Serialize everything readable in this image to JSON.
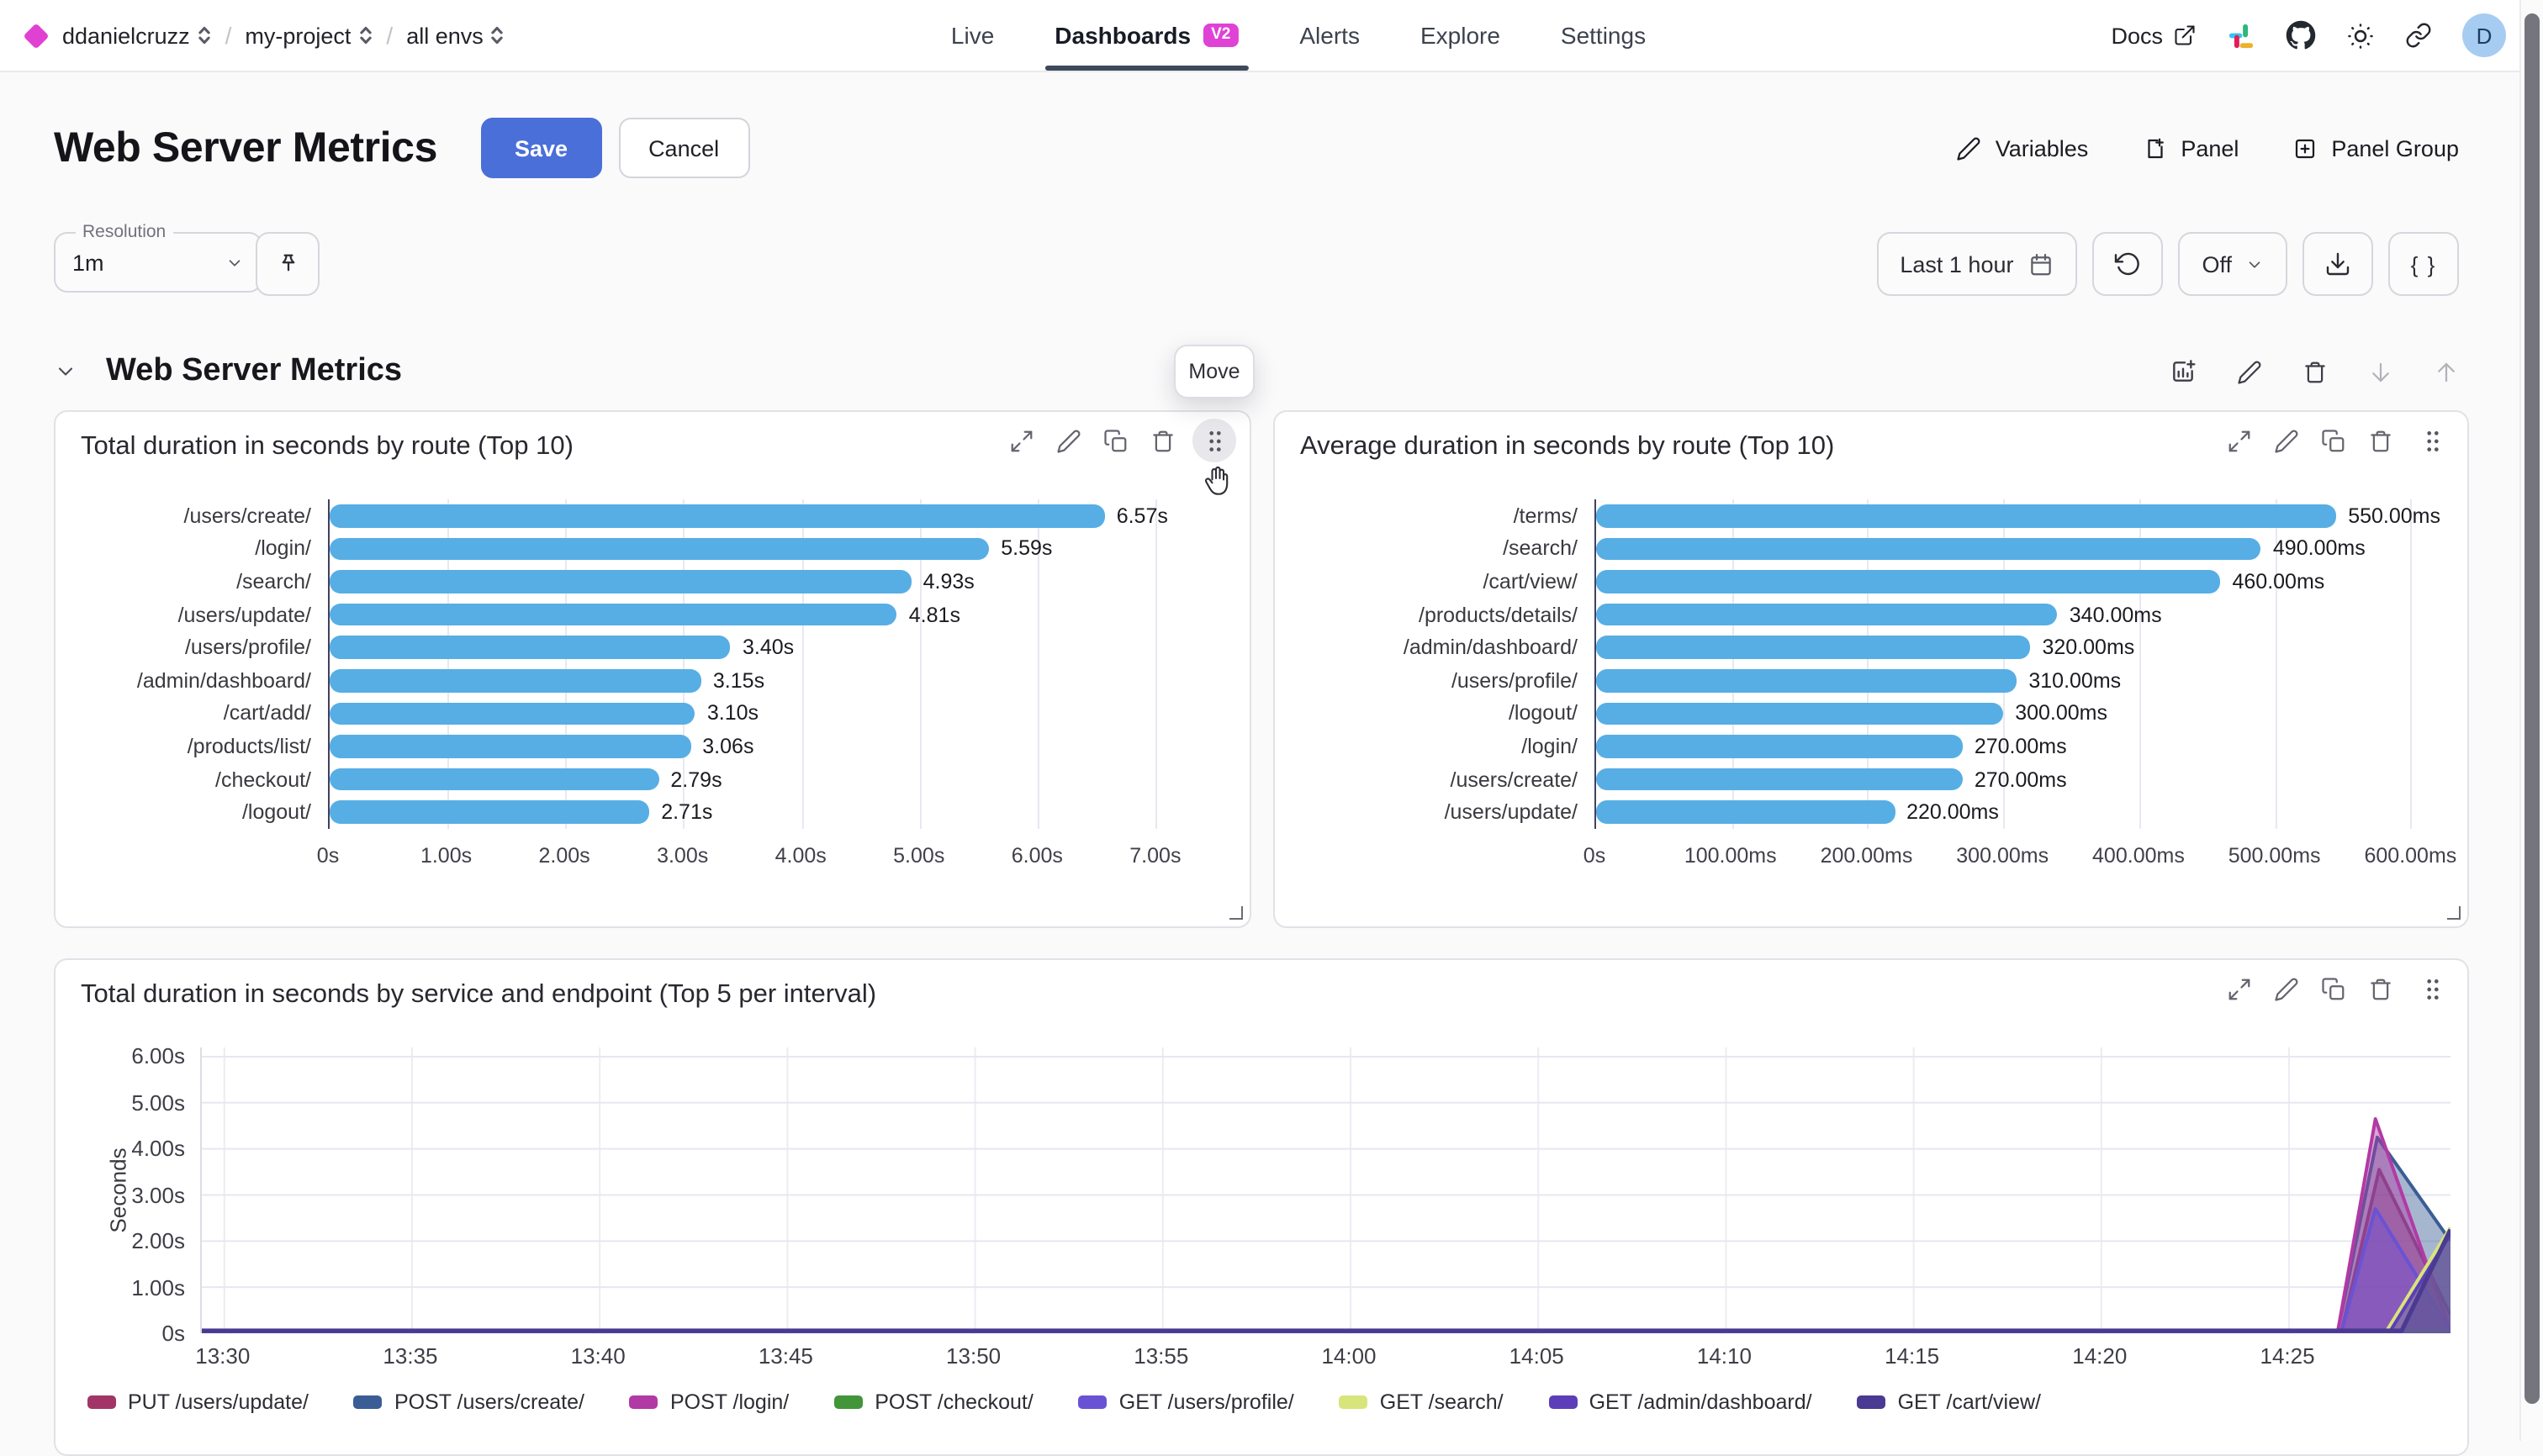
{
  "nav": {
    "org": "ddanielcruzz",
    "project": "my-project",
    "env": "all envs",
    "tabs": [
      {
        "label": "Live",
        "active": false
      },
      {
        "label": "Dashboards",
        "active": true,
        "badge": "V2"
      },
      {
        "label": "Alerts",
        "active": false
      },
      {
        "label": "Explore",
        "active": false
      },
      {
        "label": "Settings",
        "active": false
      }
    ],
    "docs_label": "Docs",
    "avatar_initial": "D"
  },
  "header": {
    "title": "Web Server Metrics",
    "save_label": "Save",
    "cancel_label": "Cancel",
    "variables_label": "Variables",
    "panel_label": "Panel",
    "panel_group_label": "Panel Group"
  },
  "controls": {
    "resolution_label": "Resolution",
    "resolution_value": "1m",
    "time_range_label": "Last 1 hour",
    "auto_refresh_value": "Off",
    "braces_label": "{ }"
  },
  "section": {
    "title": "Web Server Metrics",
    "move_tooltip": "Move"
  },
  "colors": {
    "accent_save": "#4a6fd9",
    "bar_blue": "#57aee4",
    "badge_magenta": "#e042d6",
    "tab_underline": "#3d4a5c"
  },
  "chart_data": [
    {
      "type": "bar",
      "orientation": "horizontal",
      "title": "Total duration in seconds by route (Top 10)",
      "categories": [
        "/users/create/",
        "/login/",
        "/search/",
        "/users/update/",
        "/users/profile/",
        "/admin/dashboard/",
        "/cart/add/",
        "/products/list/",
        "/checkout/",
        "/logout/"
      ],
      "values": [
        6.57,
        5.59,
        4.93,
        4.81,
        3.4,
        3.15,
        3.1,
        3.06,
        2.79,
        2.71
      ],
      "value_labels": [
        "6.57s",
        "5.59s",
        "4.93s",
        "4.81s",
        "3.40s",
        "3.15s",
        "3.10s",
        "3.06s",
        "2.79s",
        "2.71s"
      ],
      "x_ticks": [
        {
          "value": 0,
          "label": "0s"
        },
        {
          "value": 1,
          "label": "1.00s"
        },
        {
          "value": 2,
          "label": "2.00s"
        },
        {
          "value": 3,
          "label": "3.00s"
        },
        {
          "value": 4,
          "label": "4.00s"
        },
        {
          "value": 5,
          "label": "5.00s"
        },
        {
          "value": 6,
          "label": "6.00s"
        },
        {
          "value": 7,
          "label": "7.00s"
        }
      ],
      "axis_max": 7.57,
      "bar_color": "#57aee4"
    },
    {
      "type": "bar",
      "orientation": "horizontal",
      "title": "Average duration in seconds by route (Top 10)",
      "categories": [
        "/terms/",
        "/search/",
        "/cart/view/",
        "/products/details/",
        "/admin/dashboard/",
        "/users/profile/",
        "/logout/",
        "/login/",
        "/users/create/",
        "/users/update/"
      ],
      "values": [
        550,
        490,
        460,
        340,
        320,
        310,
        300,
        270,
        270,
        220
      ],
      "value_labels": [
        "550.00ms",
        "490.00ms",
        "460.00ms",
        "340.00ms",
        "320.00ms",
        "310.00ms",
        "300.00ms",
        "270.00ms",
        "270.00ms",
        "220.00ms"
      ],
      "x_ticks": [
        {
          "value": 0,
          "label": "0s"
        },
        {
          "value": 100,
          "label": "100.00ms"
        },
        {
          "value": 200,
          "label": "200.00ms"
        },
        {
          "value": 300,
          "label": "300.00ms"
        },
        {
          "value": 400,
          "label": "400.00ms"
        },
        {
          "value": 500,
          "label": "500.00ms"
        },
        {
          "value": 600,
          "label": "600.00ms"
        }
      ],
      "axis_max": 622,
      "bar_color": "#57aee4"
    },
    {
      "type": "area",
      "title": "Total duration in seconds by service and endpoint (Top 5 per interval)",
      "ylabel": "Seconds",
      "ylim": [
        0,
        6.2
      ],
      "y_ticks": [
        {
          "value": 0,
          "label": "0s"
        },
        {
          "value": 1,
          "label": "1.00s"
        },
        {
          "value": 2,
          "label": "2.00s"
        },
        {
          "value": 3,
          "label": "3.00s"
        },
        {
          "value": 4,
          "label": "4.00s"
        },
        {
          "value": 5,
          "label": "5.00s"
        },
        {
          "value": 6,
          "label": "6.00s"
        }
      ],
      "x_domain_minutes": [
        809.4,
        869.3
      ],
      "x_ticks": [
        {
          "minute": 810,
          "label": "13:30"
        },
        {
          "minute": 815,
          "label": "13:35"
        },
        {
          "minute": 820,
          "label": "13:40"
        },
        {
          "minute": 825,
          "label": "13:45"
        },
        {
          "minute": 830,
          "label": "13:50"
        },
        {
          "minute": 835,
          "label": "13:55"
        },
        {
          "minute": 840,
          "label": "14:00"
        },
        {
          "minute": 845,
          "label": "14:05"
        },
        {
          "minute": 850,
          "label": "14:10"
        },
        {
          "minute": 855,
          "label": "14:15"
        },
        {
          "minute": 860,
          "label": "14:20"
        },
        {
          "minute": 865,
          "label": "14:25"
        }
      ],
      "series": [
        {
          "name": "PUT /users/update/",
          "color": "#a23568",
          "points": [
            [
              809.4,
              0
            ],
            [
              866.4,
              0
            ],
            [
              867.4,
              3.55
            ],
            [
              869.3,
              0.4
            ]
          ]
        },
        {
          "name": "POST /users/create/",
          "color": "#3b5d95",
          "points": [
            [
              809.4,
              0
            ],
            [
              866.3,
              0
            ],
            [
              867.35,
              4.25
            ],
            [
              869.3,
              2.0
            ]
          ]
        },
        {
          "name": "POST /login/",
          "color": "#b23aa5",
          "points": [
            [
              809.4,
              0
            ],
            [
              866.3,
              0
            ],
            [
              867.3,
              4.65
            ],
            [
              869.3,
              0.05
            ]
          ]
        },
        {
          "name": "POST /checkout/",
          "color": "#43953a",
          "points": [
            [
              809.4,
              0
            ],
            [
              869.3,
              0
            ]
          ]
        },
        {
          "name": "GET /users/profile/",
          "color": "#6a52d5",
          "points": [
            [
              809.4,
              0
            ],
            [
              866.4,
              0
            ],
            [
              867.3,
              2.7
            ],
            [
              869.3,
              0.05
            ]
          ]
        },
        {
          "name": "GET /search/",
          "color": "#d8e47c",
          "points": [
            [
              809.4,
              0
            ],
            [
              867.6,
              0
            ],
            [
              869.3,
              2.3
            ]
          ]
        },
        {
          "name": "GET /admin/dashboard/",
          "color": "#5d3eb8",
          "points": [
            [
              809.4,
              0
            ],
            [
              867.7,
              0
            ],
            [
              869.3,
              2.15
            ]
          ]
        },
        {
          "name": "GET /cart/view/",
          "color": "#4a3a92",
          "points": [
            [
              809.4,
              0
            ],
            [
              868.0,
              0
            ],
            [
              869.3,
              2.25
            ]
          ]
        }
      ]
    }
  ]
}
